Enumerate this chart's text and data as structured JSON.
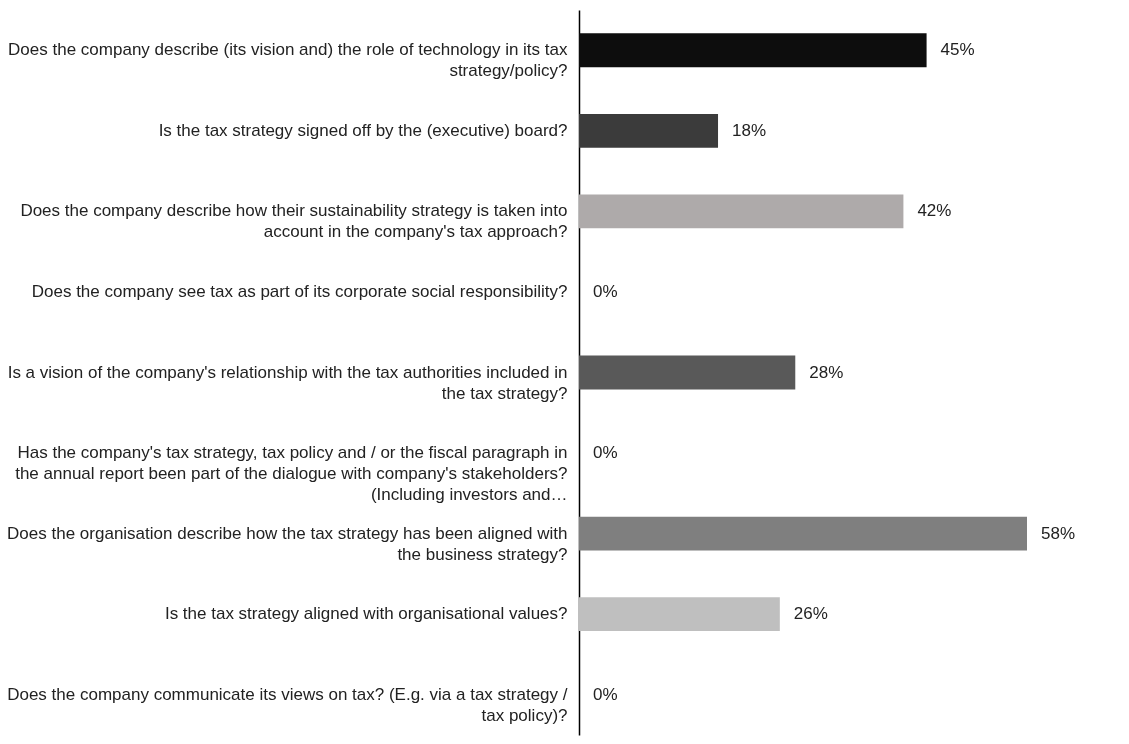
{
  "chart_data": {
    "type": "bar",
    "orientation": "horizontal",
    "categories": [
      "Does the company describe (its vision and) the role of technology in its tax strategy/policy?",
      "Is the tax strategy signed off by the (executive) board?",
      "Does the company describe how their sustainability strategy is taken into account in the company's tax approach?",
      "Does the company see tax as part of its corporate social responsibility?",
      "Is a vision of the company's relationship with the tax authorities included in the tax strategy?",
      "Has the company's tax strategy, tax policy and / or the fiscal paragraph in the annual report been part of the dialogue with company's stakeholders? (Including investors and…",
      "Does the organisation describe how the tax strategy has been aligned with the business strategy?",
      "Is the tax strategy aligned with organisational values?",
      "Does the company communicate its views on tax? (E.g. via a tax strategy / tax policy)?"
    ],
    "values": [
      45,
      18,
      42,
      0,
      28,
      0,
      58,
      26,
      0
    ],
    "value_labels": [
      "45%",
      "18%",
      "42%",
      "0%",
      "28%",
      "0%",
      "58%",
      "26%",
      "0%"
    ],
    "colors": [
      "#0d0d0d",
      "#3b3b3b",
      "#aeaaaa",
      "#7f7f7f",
      "#595959",
      "#7f7f7f",
      "#7f7f7f",
      "#bfbfbf",
      "#7f7f7f"
    ],
    "grid": false
  }
}
